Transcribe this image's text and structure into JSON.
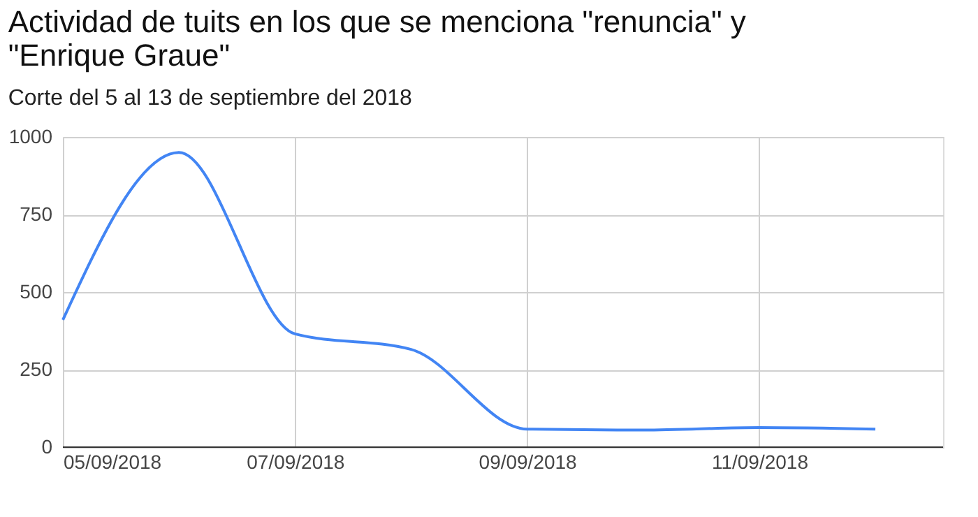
{
  "chart_data": {
    "type": "line",
    "title": "Actividad de tuits en los que se menciona \"renuncia\" y \"Enrique Graue\"",
    "subtitle": "Corte del 5 al 13 de septiembre del 2018",
    "x": [
      "2018-09-05",
      "2018-09-06",
      "2018-09-07",
      "2018-09-08",
      "2018-09-09",
      "2018-09-10",
      "2018-09-11",
      "2018-09-12"
    ],
    "series": [
      {
        "color": "#4285f4",
        "values": [
          410,
          950,
          365,
          315,
          58,
          55,
          63,
          58
        ]
      }
    ],
    "xlim": [
      "2018-09-05",
      "2018-09-12T14:00"
    ],
    "xticks": [
      {
        "value": "2018-09-05",
        "label": "05/09/2018"
      },
      {
        "value": "2018-09-07",
        "label": "07/09/2018"
      },
      {
        "value": "2018-09-09",
        "label": "09/09/2018"
      },
      {
        "value": "2018-09-11",
        "label": "11/09/2018"
      }
    ],
    "ylim": [
      0,
      1000
    ],
    "yticks": [
      0,
      250,
      500,
      750,
      1000
    ],
    "grid": true,
    "marker": "none",
    "line_style": "solid"
  }
}
